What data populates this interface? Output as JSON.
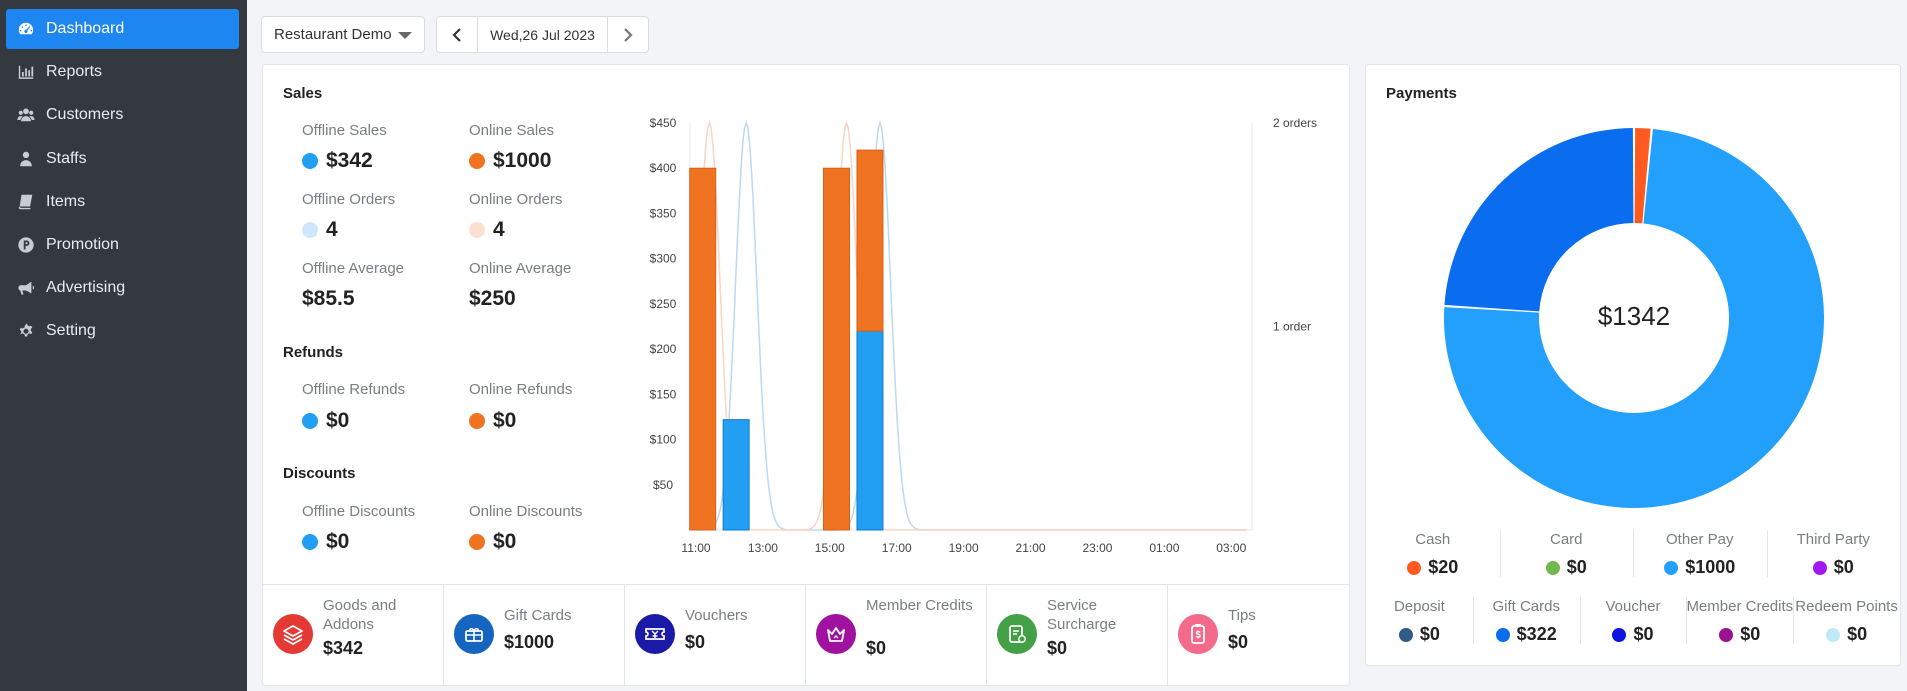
{
  "sidebar": {
    "items": [
      {
        "label": "Dashboard",
        "icon": "dashboard-icon",
        "active": true
      },
      {
        "label": "Reports",
        "icon": "bar-chart-icon"
      },
      {
        "label": "Customers",
        "icon": "users-icon"
      },
      {
        "label": "Staffs",
        "icon": "staff-icon"
      },
      {
        "label": "Items",
        "icon": "book-icon"
      },
      {
        "label": "Promotion",
        "icon": "promotion-icon"
      },
      {
        "label": "Advertising",
        "icon": "megaphone-icon"
      },
      {
        "label": "Setting",
        "icon": "gear-icon"
      }
    ]
  },
  "header": {
    "store": "Restaurant Demo",
    "date": "Wed,26 Jul 2023"
  },
  "sales": {
    "title": "Sales",
    "offline_sales_label": "Offline Sales",
    "offline_sales_value": "$342",
    "online_sales_label": "Online Sales",
    "online_sales_value": "$1000",
    "offline_orders_label": "Offline Orders",
    "offline_orders_value": "4",
    "online_orders_label": "Online Orders",
    "online_orders_value": "4",
    "offline_average_label": "Offline Average",
    "offline_average_value": "$85.5",
    "online_average_label": "Online Average",
    "online_average_value": "$250",
    "refunds_title": "Refunds",
    "offline_refunds_label": "Offline Refunds",
    "offline_refunds_value": "$0",
    "online_refunds_label": "Online Refunds",
    "online_refunds_value": "$0",
    "discounts_title": "Discounts",
    "offline_discounts_label": "Offline Discounts",
    "offline_discounts_value": "$0",
    "online_discounts_label": "Online Discounts",
    "online_discounts_value": "$0"
  },
  "colors": {
    "offline": "#229ff3",
    "online": "#ef7321",
    "offline_light": "#cfe7fb",
    "online_light": "#fbe0d2",
    "accent": "#1e86f0"
  },
  "chart_data": {
    "type": "bar",
    "x": [
      "11:00",
      "13:00",
      "15:00",
      "17:00",
      "19:00",
      "21:00",
      "23:00",
      "01:00",
      "03:00"
    ],
    "y_ticks": [
      "$50",
      "$100",
      "$150",
      "$200",
      "$250",
      "$300",
      "$350",
      "$400",
      "$450"
    ],
    "y_right_ticks": [
      "1 order",
      "2 orders"
    ],
    "ylim": [
      0,
      450
    ],
    "bars": [
      {
        "time": 11.2,
        "online": 400,
        "offline": 0
      },
      {
        "time": 12.2,
        "online": 0,
        "offline": 122
      },
      {
        "time": 15.2,
        "online": 400,
        "offline": 0
      },
      {
        "time": 16.2,
        "online": 200,
        "offline": 220
      }
    ],
    "order_lines": [
      {
        "name": "offline orders",
        "peaks": [
          {
            "time": 12.5,
            "orders": 2
          },
          {
            "time": 16.5,
            "orders": 2
          }
        ]
      },
      {
        "name": "online orders",
        "peaks": [
          {
            "time": 11.4,
            "orders": 2
          },
          {
            "time": 15.5,
            "orders": 2
          }
        ]
      }
    ]
  },
  "bottom": [
    {
      "label": "Goods and Addons",
      "value": "$342",
      "icon": "layers-icon",
      "color": "#e53935"
    },
    {
      "label": "Gift Cards",
      "value": "$1000",
      "icon": "gift-card-icon",
      "color": "#1565c0"
    },
    {
      "label": "Vouchers",
      "value": "$0",
      "icon": "voucher-icon",
      "color": "#1a1aa6"
    },
    {
      "label": "Member Credits",
      "value": "$0",
      "icon": "crown-icon",
      "color": "#a0119f"
    },
    {
      "label": "Service Surcharge",
      "value": "$0",
      "icon": "receipt-icon",
      "color": "#43a047"
    },
    {
      "label": "Tips",
      "value": "$0",
      "icon": "tips-icon",
      "color": "#f46a8a"
    }
  ],
  "payments": {
    "title": "Payments",
    "total": "$1342",
    "donut": [
      {
        "name": "Cash",
        "value": 20,
        "color": "#ff5a1f"
      },
      {
        "name": "Other Pay",
        "value": 1000,
        "color": "#22a0fb"
      },
      {
        "name": "Gift Cards",
        "value": 322,
        "color": "#0a6df0"
      }
    ],
    "row1": [
      {
        "label": "Cash",
        "value": "$20",
        "color": "#ff5a1f"
      },
      {
        "label": "Card",
        "value": "$0",
        "color": "#72b84d"
      },
      {
        "label": "Other Pay",
        "value": "$1000",
        "color": "#22a0fb"
      },
      {
        "label": "Third Party",
        "value": "$0",
        "color": "#a118f2"
      }
    ],
    "row2": [
      {
        "label": "Deposit",
        "value": "$0",
        "color": "#2f5c85"
      },
      {
        "label": "Gift Cards",
        "value": "$322",
        "color": "#0a6df0"
      },
      {
        "label": "Voucher",
        "value": "$0",
        "color": "#1212e0"
      },
      {
        "label": "Member Credits",
        "value": "$0",
        "color": "#99128f"
      },
      {
        "label": "Redeem Points",
        "value": "$0",
        "color": "#bfe9f7"
      }
    ]
  }
}
